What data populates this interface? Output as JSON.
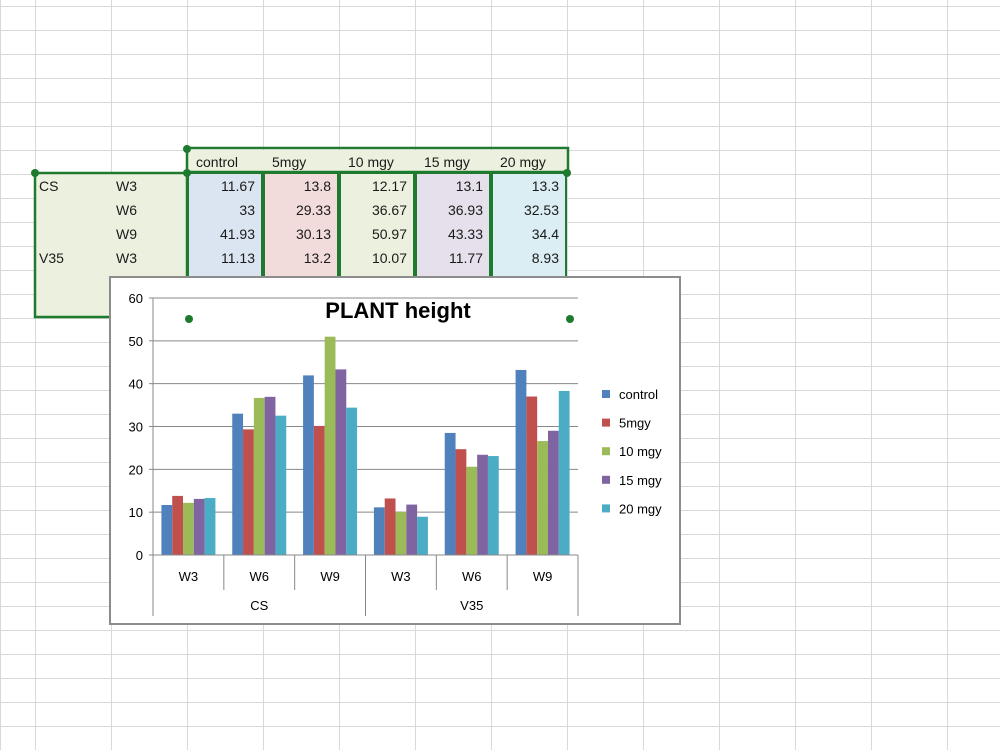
{
  "table": {
    "header": [
      "control",
      "5mgy",
      "10 mgy",
      "15 mgy",
      "20 mgy"
    ],
    "rows": [
      {
        "group": "CS",
        "week": "W3",
        "values": [
          "11.67",
          "13.8",
          "12.17",
          "13.1",
          "13.3"
        ]
      },
      {
        "group": "",
        "week": "W6",
        "values": [
          "33",
          "29.33",
          "36.67",
          "36.93",
          "32.53"
        ]
      },
      {
        "group": "",
        "week": "W9",
        "values": [
          "41.93",
          "30.13",
          "50.97",
          "43.33",
          "34.4"
        ]
      },
      {
        "group": "V35",
        "week": "W3",
        "values": [
          "11.13",
          "13.2",
          "10.07",
          "11.77",
          "8.93"
        ]
      }
    ]
  },
  "chart_data": {
    "type": "bar",
    "title": "PLANT height",
    "groups": [
      {
        "name": "CS",
        "categories": [
          "W3",
          "W6",
          "W9"
        ]
      },
      {
        "name": "V35",
        "categories": [
          "W3",
          "W6",
          "W9"
        ]
      }
    ],
    "categories": [
      "W3",
      "W6",
      "W9",
      "W3",
      "W6",
      "W9"
    ],
    "series": [
      {
        "name": "control",
        "color": "#4f81bd",
        "values": [
          11.67,
          33,
          41.93,
          11.13,
          28.5,
          43.2
        ]
      },
      {
        "name": "5mgy",
        "color": "#c0504d",
        "values": [
          13.8,
          29.33,
          30.13,
          13.2,
          24.7,
          37
        ]
      },
      {
        "name": "10 mgy",
        "color": "#9bbb59",
        "values": [
          12.17,
          36.67,
          50.97,
          10.07,
          20.6,
          26.6
        ]
      },
      {
        "name": "15 mgy",
        "color": "#8064a2",
        "values": [
          13.1,
          36.93,
          43.33,
          11.77,
          23.4,
          29
        ]
      },
      {
        "name": "20 mgy",
        "color": "#4bacc6",
        "values": [
          13.3,
          32.53,
          34.4,
          8.93,
          23.1,
          38.3
        ]
      }
    ],
    "ylim": [
      0,
      60
    ],
    "yticks": [
      "0",
      "10",
      "20",
      "30",
      "40",
      "50",
      "60"
    ],
    "grid": true,
    "legend": "right"
  }
}
